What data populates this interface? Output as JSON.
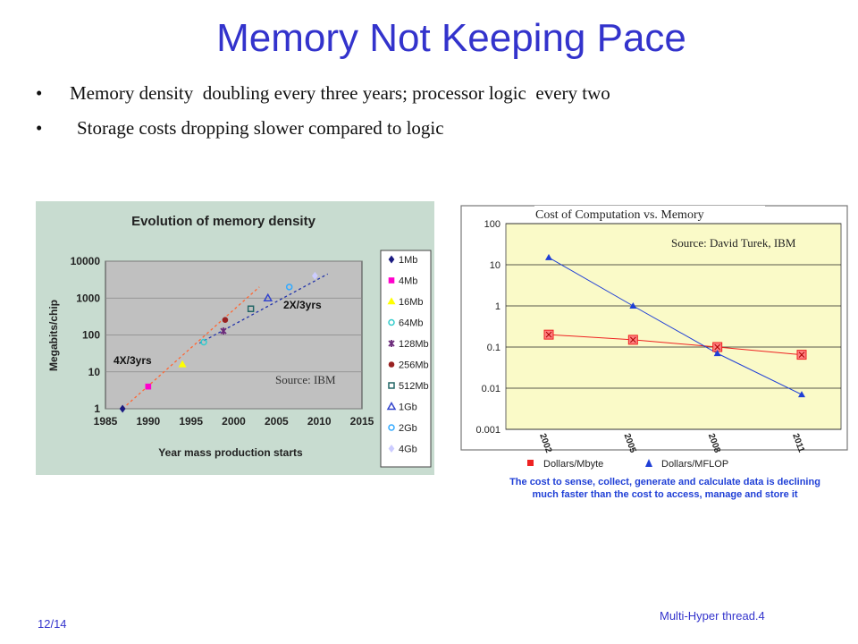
{
  "slide": {
    "title": "Memory Not Keeping Pace",
    "bullets": [
      "Memory density  doubling every three years; processor logic  every two",
      "Storage costs dropping slower compared to logic"
    ],
    "page": "12/14",
    "footer": "Multi-Hyper thread.4"
  },
  "chart_data": [
    {
      "type": "scatter",
      "title": "Evolution of memory density",
      "xlabel": "Year mass production starts",
      "ylabel": "Megabits/chip",
      "xlim": [
        1985,
        2015
      ],
      "ylim": [
        1,
        10000
      ],
      "yscale": "log",
      "xticks": [
        "1985",
        "1990",
        "1995",
        "2000",
        "2005",
        "2010",
        "2015"
      ],
      "yticks": [
        "1",
        "10",
        "100",
        "1000",
        "10000"
      ],
      "legend_position": "right",
      "source": "Source: IBM",
      "annotations": [
        "4X/3yrs",
        "2X/3yrs"
      ],
      "series": [
        {
          "name": "1Mb",
          "color": "#1a1a80",
          "marker": "diamond",
          "x": [
            1987
          ],
          "y": [
            1
          ]
        },
        {
          "name": "4Mb",
          "color": "#ff00cc",
          "marker": "square",
          "x": [
            1990
          ],
          "y": [
            4
          ]
        },
        {
          "name": "16Mb",
          "color": "#ffff00",
          "marker": "triangle",
          "x": [
            1994
          ],
          "y": [
            16
          ]
        },
        {
          "name": "64Mb",
          "color": "#33cccc",
          "marker": "circle-open",
          "x": [
            1996.5
          ],
          "y": [
            64
          ]
        },
        {
          "name": "128Mb",
          "color": "#6b2a7a",
          "marker": "star",
          "x": [
            1998.8
          ],
          "y": [
            128
          ]
        },
        {
          "name": "256Mb",
          "color": "#992222",
          "marker": "circle",
          "x": [
            1999
          ],
          "y": [
            256
          ]
        },
        {
          "name": "512Mb",
          "color": "#226666",
          "marker": "square-open",
          "x": [
            2002
          ],
          "y": [
            512
          ]
        },
        {
          "name": "1Gb",
          "color": "#3344cc",
          "marker": "triangle-open",
          "x": [
            2004
          ],
          "y": [
            1000
          ]
        },
        {
          "name": "2Gb",
          "color": "#33aaff",
          "marker": "circle-open",
          "x": [
            2006.5
          ],
          "y": [
            2000
          ]
        },
        {
          "name": "4Gb",
          "color": "#ccccff",
          "marker": "diamond",
          "x": [
            2009.5
          ],
          "y": [
            4000
          ]
        }
      ],
      "trend_lines": [
        {
          "label": "4X/3yrs",
          "color": "#ff6633",
          "x": [
            1987,
            2003
          ],
          "y": [
            1,
            2000
          ]
        },
        {
          "label": "2X/3yrs",
          "color": "#2233aa",
          "x": [
            1996,
            2011
          ],
          "y": [
            60,
            4500
          ]
        }
      ]
    },
    {
      "type": "line",
      "title": "Cost of Computation vs. Memory",
      "source": "Source: David Turek, IBM",
      "categories": [
        "2002",
        "2005",
        "2008",
        "2011"
      ],
      "yscale": "log",
      "ylim": [
        0.001,
        100
      ],
      "yticks": [
        "100",
        "10",
        "1",
        "0.1",
        "0.01",
        "0.001"
      ],
      "legend_position": "bottom",
      "series": [
        {
          "name": "Dollars/Mbyte",
          "color": "#ee2222",
          "marker": "square",
          "values": [
            0.2,
            0.15,
            0.1,
            0.065
          ]
        },
        {
          "name": "Dollars/MFLOP",
          "color": "#1f3fd6",
          "marker": "triangle",
          "values": [
            15,
            1,
            0.07,
            0.007
          ]
        }
      ],
      "caption": "The cost to sense, collect, generate and calculate data is declining much faster than the cost to access, manage and store it"
    }
  ]
}
